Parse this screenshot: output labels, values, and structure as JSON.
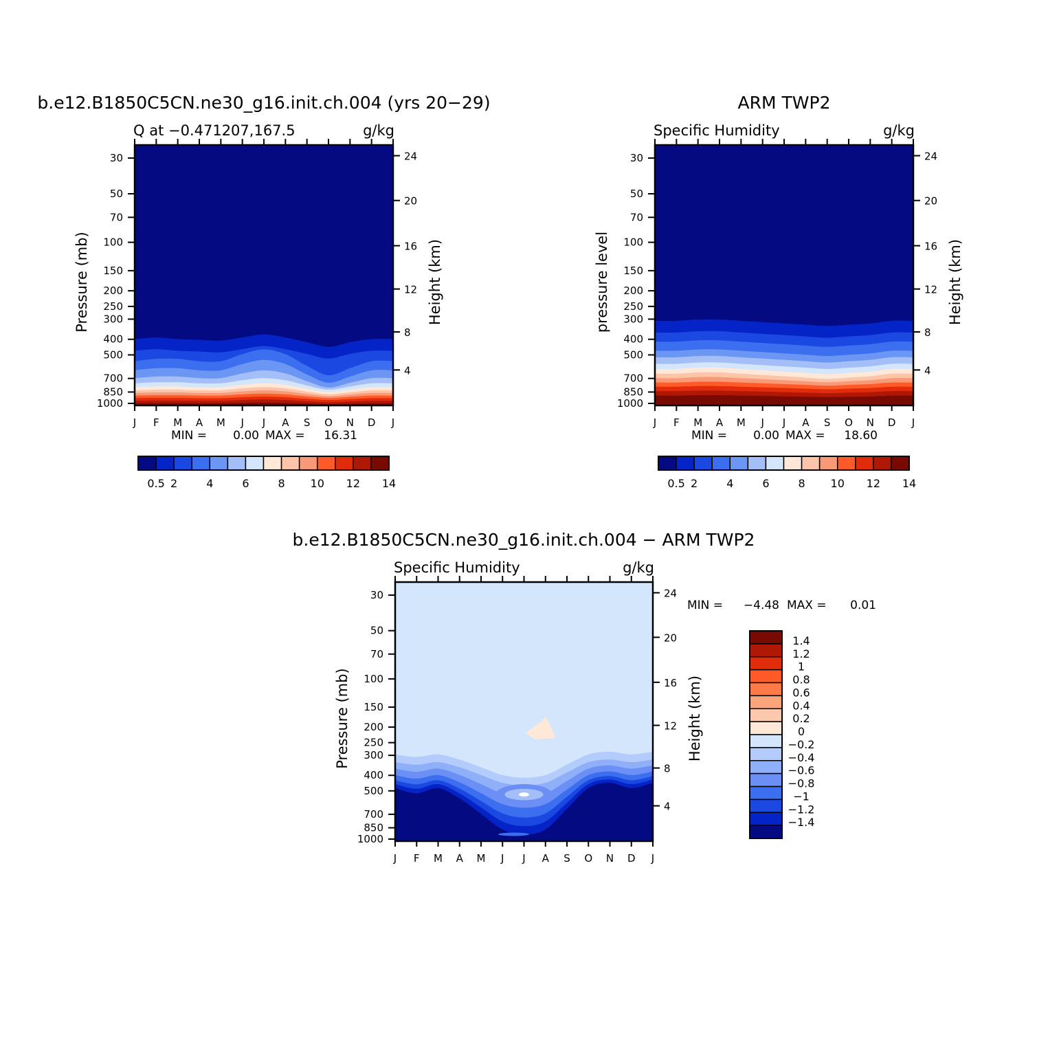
{
  "chart_data": [
    {
      "type": "heatmap",
      "title": "b.e12.B1850C5CN.ne30_g16.init.ch.004 (yrs 20−29)",
      "subtitle_left": "Q at −0.471207,167.5",
      "subtitle_right": "g/kg",
      "ylabel": "Pressure (mb)",
      "ylabel_right": "Height (km)",
      "x_ticks": [
        "J",
        "F",
        "M",
        "A",
        "M",
        "J",
        "J",
        "A",
        "S",
        "O",
        "N",
        "D",
        "J"
      ],
      "y_ticks": [
        "30",
        "50",
        "70",
        "100",
        "150",
        "200",
        "250",
        "300",
        "400",
        "500",
        "700",
        "850",
        "1000"
      ],
      "y_right_ticks": [
        "24",
        "20",
        "16",
        "12",
        "8",
        "4"
      ],
      "stats": {
        "min_label": "MIN =",
        "min_value": "0.00",
        "max_label": "MAX =",
        "max_value": "16.31"
      },
      "colorbar_labels": [
        "0.5",
        "2",
        "4",
        "6",
        "8",
        "10",
        "12",
        "14"
      ]
    },
    {
      "type": "heatmap",
      "title": "ARM TWP2",
      "subtitle_left": "Specific Humidity",
      "subtitle_right": "g/kg",
      "ylabel": "pressure level",
      "ylabel_right": "Height (km)",
      "x_ticks": [
        "J",
        "F",
        "M",
        "A",
        "M",
        "J",
        "J",
        "A",
        "S",
        "O",
        "N",
        "D",
        "J"
      ],
      "y_ticks": [
        "30",
        "50",
        "70",
        "100",
        "150",
        "200",
        "250",
        "300",
        "400",
        "500",
        "700",
        "850",
        "1000"
      ],
      "y_right_ticks": [
        "24",
        "20",
        "16",
        "12",
        "8",
        "4"
      ],
      "stats": {
        "min_label": "MIN =",
        "min_value": "0.00",
        "max_label": "MAX =",
        "max_value": "18.60"
      },
      "colorbar_labels": [
        "0.5",
        "2",
        "4",
        "6",
        "8",
        "10",
        "12",
        "14"
      ]
    },
    {
      "type": "heatmap",
      "title": "b.e12.B1850C5CN.ne30_g16.init.ch.004 − ARM TWP2",
      "subtitle_left": "Specific Humidity",
      "subtitle_right": "g/kg",
      "ylabel": "Pressure (mb)",
      "ylabel_right": "Height (km)",
      "x_ticks": [
        "J",
        "F",
        "M",
        "A",
        "M",
        "J",
        "J",
        "A",
        "S",
        "O",
        "N",
        "D",
        "J"
      ],
      "y_ticks": [
        "30",
        "50",
        "70",
        "100",
        "150",
        "200",
        "250",
        "300",
        "400",
        "500",
        "700",
        "850",
        "1000"
      ],
      "y_right_ticks": [
        "24",
        "20",
        "16",
        "12",
        "8",
        "4"
      ],
      "stats": {
        "min_label": "MIN =",
        "min_value": "−4.48",
        "max_label": "MAX =",
        "max_value": "0.01"
      },
      "colorbar_labels": [
        "1.4",
        "1.2",
        "1",
        "0.8",
        "0.6",
        "0.4",
        "0.2",
        "0",
        "−0.2",
        "−0.4",
        "−0.6",
        "−0.8",
        "−1",
        "−1.2",
        "−1.4"
      ]
    }
  ],
  "colors": {
    "sequential": [
      "#030a82",
      "#0424c8",
      "#1a48e0",
      "#3c6ef0",
      "#6c96f3",
      "#a4bef8",
      "#d3e6fc",
      "#ffe8d8",
      "#fcc4a8",
      "#f89a78",
      "#ff5a28",
      "#e02c0a",
      "#b01806",
      "#780a02"
    ],
    "diverging": [
      "#780a02",
      "#b01806",
      "#e02c0a",
      "#ff5a28",
      "#ff7a48",
      "#fca57d",
      "#fcc8ae",
      "#ffe8d8",
      "#d3e6fc",
      "#b4ccfc",
      "#8fb0f8",
      "#6c8ff5",
      "#3c6ef0",
      "#1a48e0",
      "#0424c8",
      "#030a82"
    ]
  }
}
